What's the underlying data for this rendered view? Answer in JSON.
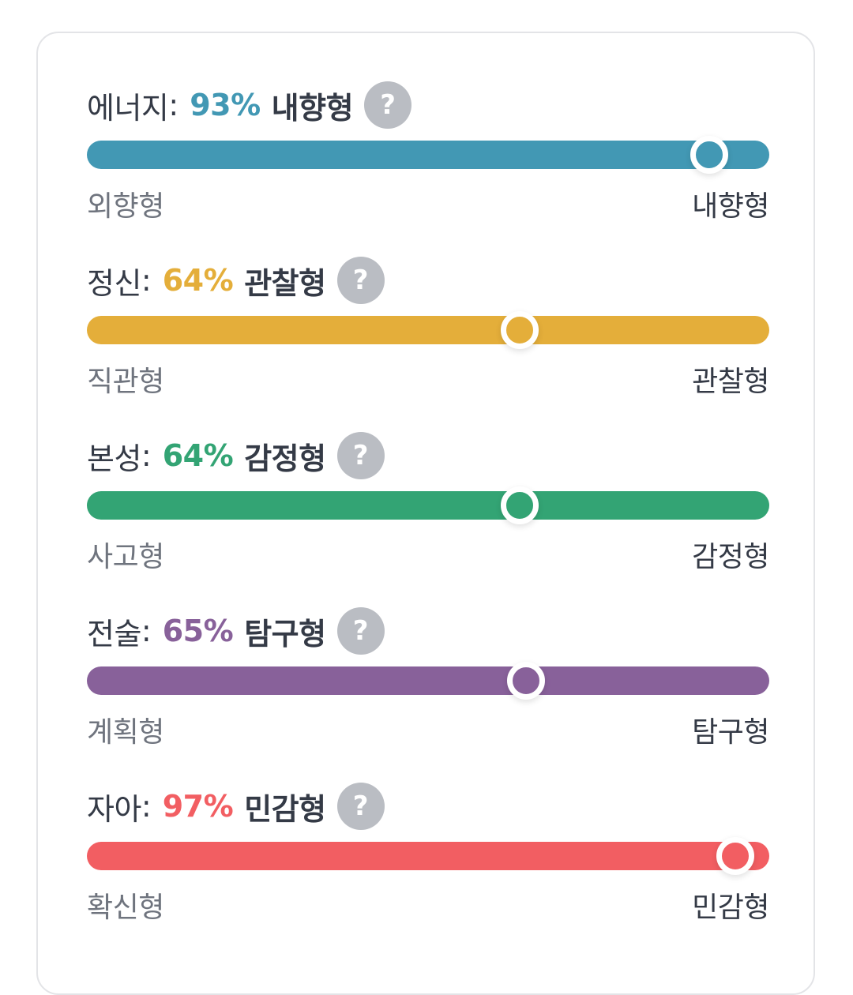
{
  "traits": [
    {
      "label": "에너지",
      "percent": "93%",
      "value": 0.93,
      "result": "내향형",
      "left_pole": "외향형",
      "right_pole": "내향형",
      "color": "#4298b4"
    },
    {
      "label": "정신",
      "percent": "64%",
      "value": 0.64,
      "result": "관찰형",
      "left_pole": "직관형",
      "right_pole": "관찰형",
      "color": "#e4ae3a"
    },
    {
      "label": "본성",
      "percent": "64%",
      "value": 0.64,
      "result": "감정형",
      "left_pole": "사고형",
      "right_pole": "감정형",
      "color": "#33a474"
    },
    {
      "label": "전술",
      "percent": "65%",
      "value": 0.65,
      "result": "탐구형",
      "left_pole": "계획형",
      "right_pole": "탐구형",
      "color": "#88619a"
    },
    {
      "label": "자아",
      "percent": "97%",
      "value": 0.97,
      "result": "민감형",
      "left_pole": "확신형",
      "right_pole": "민감형",
      "color": "#f25e62"
    }
  ],
  "help_icon": "question-mark-icon",
  "help_glyph": "?",
  "colon": ":"
}
